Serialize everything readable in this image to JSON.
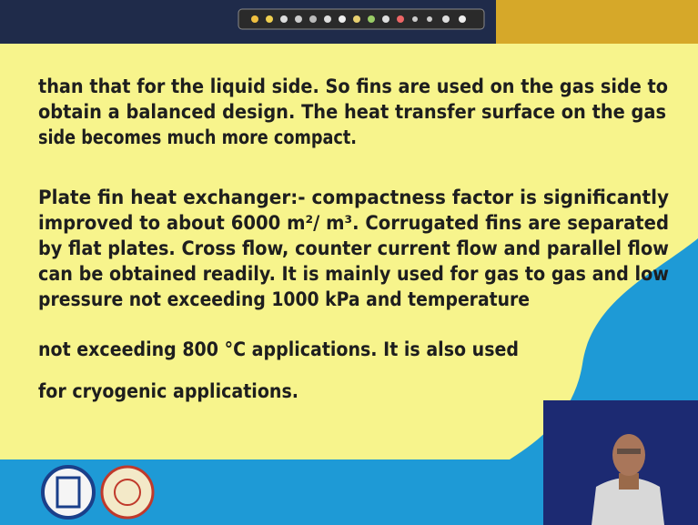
{
  "slide": {
    "paragraphs": [
      {
        "lines": [
          "than that for the liquid side. So fins are used on the gas side to",
          "obtain a balanced design. The heat transfer surface on the gas",
          "side becomes much more compact."
        ]
      },
      {
        "lines": [
          "Plate fin heat exchanger:- compactness factor is significantly",
          "improved to about 6000 m²/ m³. Corrugated fins are separated",
          "by flat plates. Cross flow, counter current flow and parallel flow",
          "can be obtained readily. It is mainly used for gas to gas and low",
          "pressure not exceeding 1000 kPa  and temperature"
        ]
      },
      {
        "lines": [
          "not exceeding 800 °C applications. It is also used"
        ]
      },
      {
        "lines": [
          "for cryogenic applications."
        ]
      }
    ]
  }
}
